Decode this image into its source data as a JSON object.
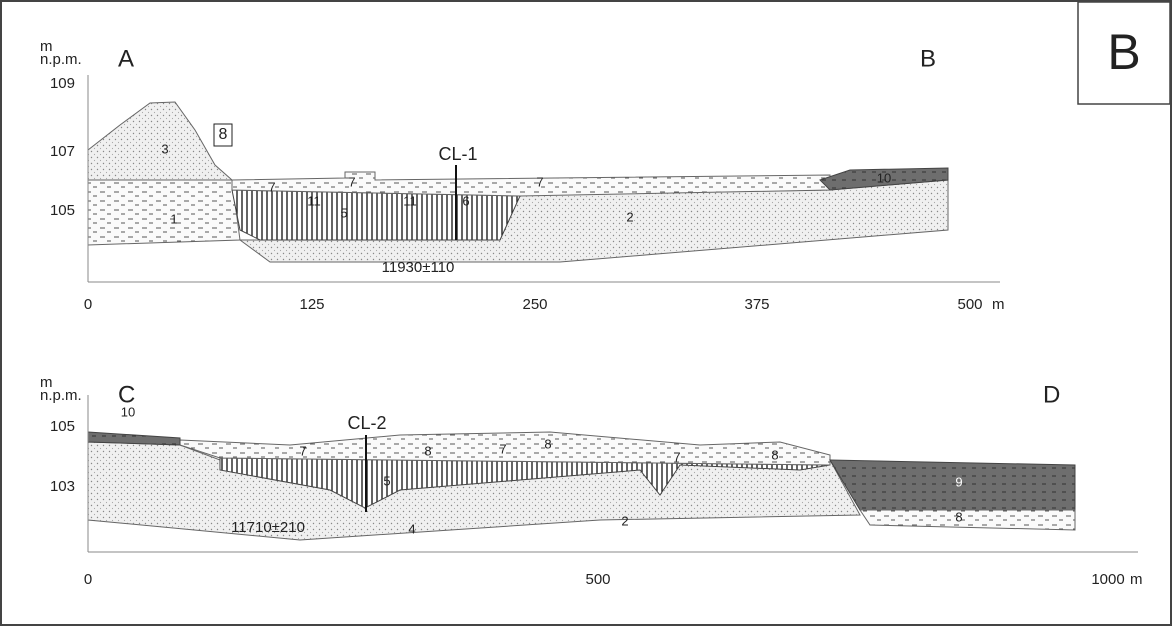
{
  "figure_label": "B",
  "profiles": [
    {
      "y_unit": [
        "m",
        "n.p.m."
      ],
      "start": "A",
      "end": "B",
      "y_labels": [
        "109",
        "107",
        "105"
      ],
      "x_labels": [
        "0",
        "125",
        "250",
        "375",
        "500"
      ],
      "x_unit": "m",
      "borehole": "CL-1",
      "date": "11930±110",
      "units": [
        "3",
        "8",
        "7",
        "7",
        "7",
        "1",
        "11",
        "5",
        "11",
        "6",
        "2",
        "10"
      ]
    },
    {
      "y_unit": [
        "m",
        "n.p.m."
      ],
      "start": "C",
      "end": "D",
      "y_labels": [
        "105",
        "103"
      ],
      "x_labels": [
        "0",
        "500",
        "1000"
      ],
      "x_unit": "m",
      "borehole": "CL-2",
      "date": "11710±210",
      "units": [
        "10",
        "7",
        "8",
        "7",
        "8",
        "7",
        "8",
        "5",
        "9",
        "4",
        "2",
        "8"
      ]
    }
  ]
}
